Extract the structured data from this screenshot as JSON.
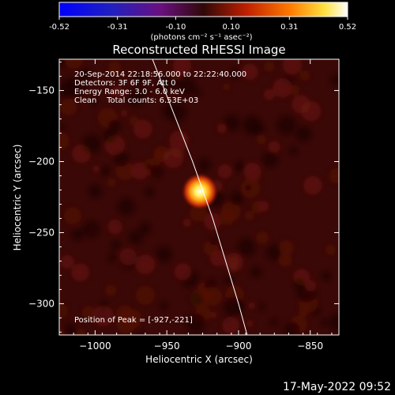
{
  "colorbar": {
    "ticks": [
      -0.52,
      -0.31,
      -0.1,
      0.1,
      0.31,
      0.52
    ],
    "tick_labels": [
      "-0.52",
      "-0.31",
      "-0.10",
      "0.10",
      "0.31",
      "0.52"
    ],
    "min": -0.52,
    "max": 0.52,
    "unit_label": "(photons cm⁻² s⁻¹ asec⁻²)",
    "colormap": "blue-purple-red-yellow-white"
  },
  "title": "Reconstructed RHESSI Image",
  "info": {
    "line1": "20-Sep-2014 22:18:56.000 to 22:22:40.000",
    "line2": "Detectors: 3F 6F 9F, Att 0",
    "line3": "Energy Range: 3.0 - 6.0 keV",
    "line4": "Clean    Total counts: 6.53E+03",
    "peak": "Position of Peak = [-927,-221]"
  },
  "timestamp": "17-May-2022 09:52",
  "chart_data": {
    "type": "heatmap",
    "title": "Reconstructed RHESSI Image",
    "xlabel": "Heliocentric X (arcsec)",
    "ylabel": "Heliocentric Y (arcsec)",
    "xlim": [
      -1025,
      -830
    ],
    "ylim": [
      -322,
      -128
    ],
    "x_ticks": [
      -1000,
      -950,
      -900,
      -850
    ],
    "y_ticks": [
      -150,
      -200,
      -250,
      -300
    ],
    "x_tick_labels": [
      "−1000",
      "−950",
      "−900",
      "−850"
    ],
    "y_tick_labels": [
      "−150",
      "−200",
      "−250",
      "−300"
    ],
    "peak_position": [
      -927,
      -221
    ],
    "peak_value": 0.52,
    "background_level": 0.06,
    "limb_curve": [
      [
        -960,
        -128
      ],
      [
        -932,
        -200
      ],
      [
        -918,
        -240
      ],
      [
        -900,
        -300
      ],
      [
        -894,
        -322
      ]
    ]
  }
}
